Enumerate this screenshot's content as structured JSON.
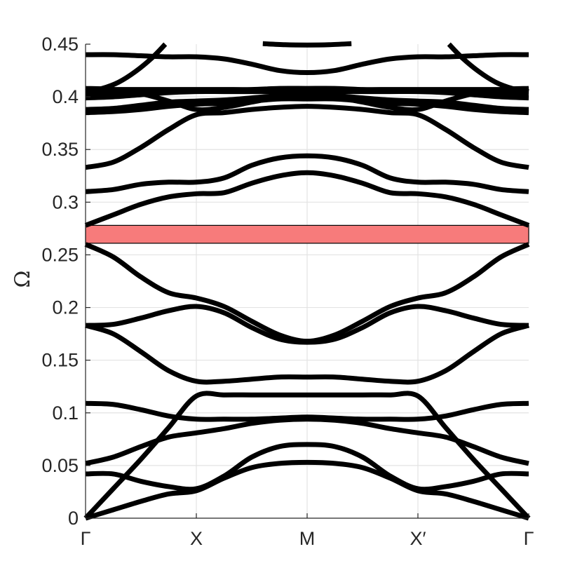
{
  "chart_data": {
    "type": "line",
    "title": "",
    "xlabel": "",
    "ylabel": "Ω",
    "ylim": [
      0,
      0.45
    ],
    "grid": true,
    "legend": "none",
    "colors": {
      "band_line": "#000000",
      "band_gap": "#f77b7b",
      "grid": "#e3e3e3",
      "axis": "#262626"
    },
    "x_ticks": [
      {
        "pos": 0,
        "label": "Γ"
      },
      {
        "pos": 1,
        "label": "X"
      },
      {
        "pos": 2,
        "label": "M"
      },
      {
        "pos": 3,
        "label": "X′"
      },
      {
        "pos": 4,
        "label": "Γ"
      }
    ],
    "y_ticks": [
      {
        "value": 0,
        "label": "0"
      },
      {
        "value": 0.05,
        "label": "0.05"
      },
      {
        "value": 0.1,
        "label": "0.1"
      },
      {
        "value": 0.15,
        "label": "0.15"
      },
      {
        "value": 0.2,
        "label": "0.2"
      },
      {
        "value": 0.25,
        "label": "0.25"
      },
      {
        "value": 0.3,
        "label": "0.3"
      },
      {
        "value": 0.35,
        "label": "0.35"
      },
      {
        "value": 0.4,
        "label": "0.4"
      },
      {
        "value": 0.45,
        "label": "0.45"
      }
    ],
    "band_gap": {
      "y_min": 0.261,
      "y_max": 0.278
    },
    "x_path_positions": [
      0,
      0.25,
      0.5,
      0.75,
      1,
      1.25,
      1.5,
      1.75,
      2,
      2.25,
      2.5,
      2.75,
      3,
      3.25,
      3.5,
      3.75,
      4
    ],
    "series": [
      {
        "values": [
          0,
          0.008,
          0.016,
          0.023,
          0.026,
          0.038,
          0.048,
          0.052,
          0.053,
          0.052,
          0.048,
          0.038,
          0.026,
          0.023,
          0.016,
          0.008,
          0
        ]
      },
      {
        "values": [
          0,
          0.028,
          0.056,
          0.086,
          0.116,
          0.117,
          0.117,
          0.117,
          0.117,
          0.117,
          0.117,
          0.117,
          0.116,
          0.086,
          0.056,
          0.028,
          0
        ]
      },
      {
        "values": [
          0.042,
          0.042,
          0.035,
          0.03,
          0.028,
          0.04,
          0.058,
          0.068,
          0.07,
          0.068,
          0.058,
          0.04,
          0.028,
          0.03,
          0.035,
          0.042,
          0.042
        ]
      },
      {
        "values": [
          0.052,
          0.058,
          0.068,
          0.077,
          0.081,
          0.085,
          0.09,
          0.093,
          0.094,
          0.093,
          0.09,
          0.085,
          0.081,
          0.077,
          0.068,
          0.058,
          0.052
        ]
      },
      {
        "values": [
          0.109,
          0.108,
          0.103,
          0.097,
          0.094,
          0.094,
          0.094,
          0.095,
          0.096,
          0.095,
          0.094,
          0.094,
          0.094,
          0.097,
          0.103,
          0.108,
          0.109
        ]
      },
      {
        "values": [
          0.183,
          0.175,
          0.158,
          0.14,
          0.13,
          0.13,
          0.132,
          0.134,
          0.134,
          0.134,
          0.132,
          0.13,
          0.13,
          0.14,
          0.158,
          0.175,
          0.183
        ]
      },
      {
        "values": [
          0.183,
          0.184,
          0.19,
          0.197,
          0.201,
          0.195,
          0.181,
          0.17,
          0.167,
          0.17,
          0.181,
          0.195,
          0.201,
          0.197,
          0.19,
          0.184,
          0.183
        ]
      },
      {
        "values": [
          0.26,
          0.248,
          0.229,
          0.214,
          0.209,
          0.201,
          0.187,
          0.174,
          0.168,
          0.174,
          0.187,
          0.201,
          0.209,
          0.214,
          0.229,
          0.248,
          0.26
        ]
      },
      {
        "values": [
          0.278,
          0.288,
          0.298,
          0.305,
          0.308,
          0.309,
          0.318,
          0.325,
          0.328,
          0.325,
          0.318,
          0.309,
          0.308,
          0.305,
          0.298,
          0.288,
          0.278
        ]
      },
      {
        "values": [
          0.31,
          0.312,
          0.317,
          0.319,
          0.319,
          0.323,
          0.335,
          0.342,
          0.344,
          0.342,
          0.335,
          0.323,
          0.319,
          0.319,
          0.317,
          0.312,
          0.31
        ]
      },
      {
        "values": [
          0.333,
          0.338,
          0.352,
          0.369,
          0.383,
          0.385,
          0.388,
          0.39,
          0.391,
          0.39,
          0.388,
          0.385,
          0.383,
          0.369,
          0.352,
          0.338,
          0.333
        ]
      },
      {
        "values": [
          0.385,
          0.386,
          0.388,
          0.391,
          0.393,
          0.394,
          0.396,
          0.398,
          0.398,
          0.398,
          0.396,
          0.394,
          0.393,
          0.391,
          0.388,
          0.386,
          0.385
        ]
      },
      {
        "values": [
          0.388,
          0.389,
          0.392,
          0.395,
          0.396,
          0.397,
          0.399,
          0.401,
          0.401,
          0.401,
          0.399,
          0.397,
          0.396,
          0.395,
          0.392,
          0.389,
          0.388
        ]
      },
      {
        "values": [
          0.399,
          0.4,
          0.402,
          0.404,
          0.405,
          0.405,
          0.405,
          0.405,
          0.405,
          0.405,
          0.405,
          0.405,
          0.405,
          0.404,
          0.402,
          0.4,
          0.399
        ]
      },
      {
        "values": [
          0.403,
          0.404,
          0.405,
          0.406,
          0.406,
          0.406,
          0.406,
          0.406,
          0.407,
          0.406,
          0.406,
          0.406,
          0.406,
          0.406,
          0.405,
          0.404,
          0.403
        ]
      },
      {
        "values": [
          0.407,
          0.407,
          0.407,
          0.407,
          0.407,
          0.407,
          0.407,
          0.408,
          0.408,
          0.408,
          0.407,
          0.407,
          0.407,
          0.407,
          0.407,
          0.407,
          0.407
        ]
      },
      {
        "values": [
          0.408,
          0.407,
          0.403,
          0.396,
          0.388,
          0.39,
          0.395,
          0.4,
          0.404,
          0.4,
          0.395,
          0.39,
          0.388,
          0.396,
          0.403,
          0.407,
          0.408
        ]
      },
      {
        "values": [
          0.44,
          0.44,
          0.439,
          0.438,
          0.438,
          0.436,
          0.431,
          0.425,
          0.423,
          0.425,
          0.431,
          0.436,
          0.438,
          0.438,
          0.439,
          0.44,
          0.44
        ]
      },
      {
        "x": [
          0,
          0.15,
          0.3,
          0.45,
          0.6,
          0.72
        ],
        "values": [
          0.405,
          0.408,
          0.414,
          0.424,
          0.437,
          0.45
        ]
      },
      {
        "x": [
          3.28,
          3.4,
          3.55,
          3.7,
          3.85,
          4
        ],
        "values": [
          0.45,
          0.437,
          0.424,
          0.414,
          0.408,
          0.405
        ]
      },
      {
        "x": [
          1.6,
          1.8,
          2.0,
          2.2,
          2.4
        ],
        "values": [
          0.4505,
          0.4495,
          0.4492,
          0.4495,
          0.4505
        ]
      }
    ]
  }
}
